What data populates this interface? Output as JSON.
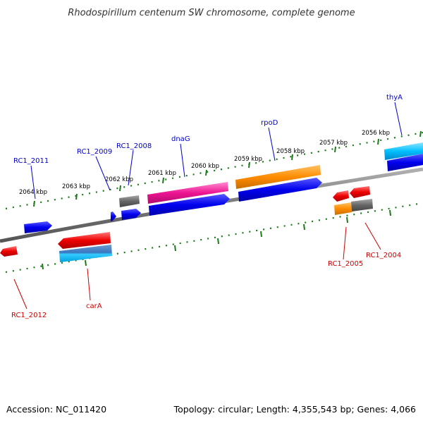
{
  "header": {
    "title": "Rhodospirillum centenum SW chromosome, complete genome"
  },
  "footer": {
    "accession": "Accession: NC_011420",
    "summary": "Topology: circular; Length: 4,355,543 bp; Genes: 4,066"
  },
  "ticks": [
    "2064 kbp",
    "2063 kbp",
    "2062 kbp",
    "2061 kbp",
    "2060 kbp",
    "2059 kbp",
    "2058 kbp",
    "2057 kbp",
    "2056 kbp"
  ],
  "labels": {
    "rc1_2011": "RC1_2011",
    "rc1_2009": "RC1_2009",
    "rc1_2008": "RC1_2008",
    "dnaG": "dnaG",
    "rpoD": "rpoD",
    "thyA": "thyA",
    "rc1_2012": "RC1_2012",
    "carA": "carA",
    "rc1_2005": "RC1_2005",
    "rc1_2004": "RC1_2004"
  },
  "colors": {
    "forward_label": "#0000cc",
    "reverse_label": "#cc0000",
    "tick": "#1a7a1a",
    "backbone": "#808080",
    "blue": "#0000ee",
    "red": "#ee0000",
    "pink": "#ee1493",
    "orange": "#ff8c00",
    "grey": "#666666",
    "cyan": "#00bfff"
  }
}
